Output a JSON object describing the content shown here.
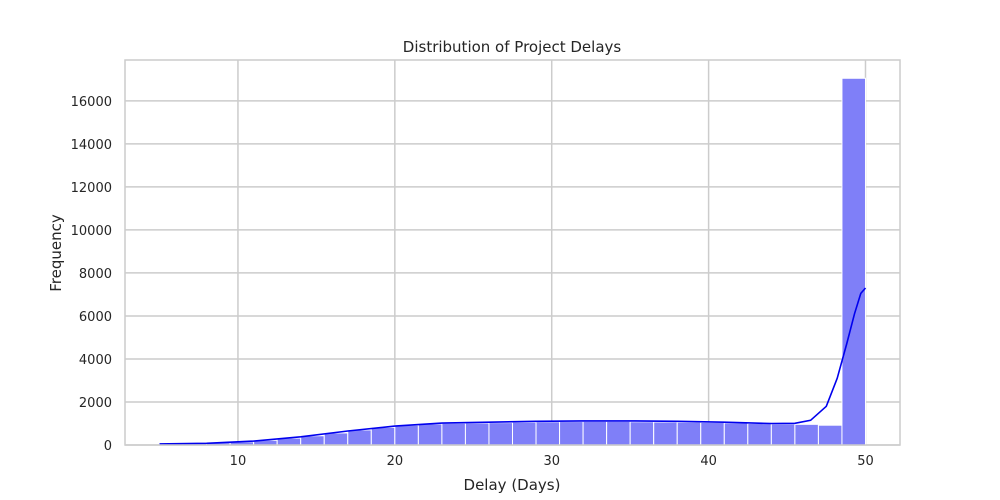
{
  "chart_data": {
    "type": "bar",
    "title": "Distribution of Project Delays",
    "xlabel": "Delay (Days)",
    "ylabel": "Frequency",
    "xlim": [
      2.8,
      52.2
    ],
    "ylim": [
      0,
      17900
    ],
    "xticks": [
      10,
      20,
      30,
      40,
      50
    ],
    "yticks": [
      0,
      2000,
      4000,
      6000,
      8000,
      10000,
      12000,
      14000,
      16000
    ],
    "grid": true,
    "bin_edges": [
      5.0,
      6.5,
      8.0,
      9.5,
      11.0,
      12.5,
      14.0,
      15.5,
      17.0,
      18.5,
      20.0,
      21.5,
      23.0,
      24.5,
      26.0,
      27.5,
      29.0,
      30.5,
      32.0,
      33.5,
      35.0,
      36.5,
      38.0,
      39.5,
      41.0,
      42.5,
      44.0,
      45.5,
      47.0,
      48.5,
      50.0
    ],
    "values": [
      60,
      80,
      110,
      150,
      220,
      320,
      430,
      560,
      700,
      820,
      920,
      980,
      1010,
      1020,
      1040,
      1060,
      1080,
      1090,
      1100,
      1100,
      1080,
      1070,
      1060,
      1050,
      1030,
      1000,
      980,
      960,
      920,
      17050
    ],
    "bar_color": "#7f7ff8",
    "series": [
      {
        "name": "",
        "kind": "kde",
        "x": [
          5,
          8,
          11,
          14,
          17,
          20,
          23,
          26,
          29,
          32,
          35,
          38,
          41,
          44,
          45.5,
          46.5,
          47.5,
          48.2,
          48.8,
          49.3,
          49.7,
          50
        ],
        "y": [
          50,
          80,
          180,
          380,
          650,
          880,
          1020,
          1060,
          1100,
          1120,
          1120,
          1100,
          1060,
          1000,
          1010,
          1150,
          1800,
          3100,
          4700,
          6100,
          7050,
          7300
        ],
        "color": "#0000ee"
      }
    ]
  }
}
